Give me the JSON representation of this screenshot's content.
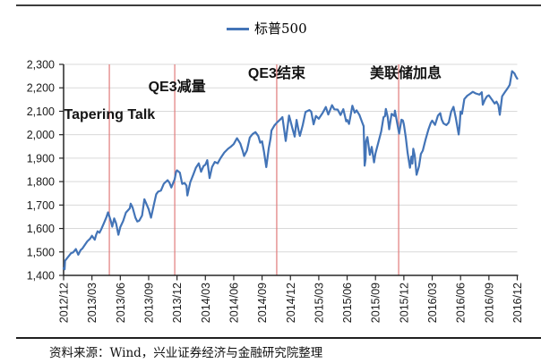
{
  "legend": {
    "label": "标普500"
  },
  "footer": {
    "source_text": "资料来源：Wind，兴业证券经济与金融研究院整理"
  },
  "colors": {
    "series_line": "#4374b7",
    "event_line": "#e07b7b",
    "gridline": "#d9d9d9",
    "axis": "#262626",
    "text": "#1a1a1a",
    "rule": "#3d3d3d"
  },
  "chart_data": {
    "type": "line",
    "title": "",
    "legend_entries": [
      "标普500"
    ],
    "legend_position": "top-center",
    "grid": "horizontal",
    "ylim": [
      1400,
      2300
    ],
    "y_tick_step": 100,
    "y_tick_labels": [
      "1,400",
      "1,500",
      "1,600",
      "1,700",
      "1,800",
      "1,900",
      "2,000",
      "2,100",
      "2,200",
      "2,300"
    ],
    "x_tick_labels": [
      "2012/12",
      "2013/03",
      "2013/06",
      "2013/09",
      "2013/12",
      "2014/03",
      "2014/06",
      "2014/09",
      "2014/12",
      "2015/03",
      "2015/06",
      "2015/09",
      "2015/12",
      "2016/03",
      "2016/06",
      "2016/09",
      "2016/12"
    ],
    "x_tick_months": [
      0,
      3,
      6,
      9,
      12,
      15,
      18,
      21,
      24,
      27,
      30,
      33,
      36,
      39,
      42,
      45,
      48
    ],
    "x_unit": "months after 2012/12",
    "xlim_months": [
      0,
      48
    ],
    "events": [
      {
        "label": "Tapering Talk",
        "line_month": 4.84,
        "label_month": 0.05,
        "label_value": 2083,
        "align": "left"
      },
      {
        "label": "QE3减量",
        "line_month": 11.76,
        "label_month": 12.0,
        "label_value": 2212,
        "align": "center"
      },
      {
        "label": "QE3结束",
        "line_month": 22.55,
        "label_month": 22.55,
        "label_value": 2268,
        "align": "center"
      },
      {
        "label": "美联储加息",
        "line_month": 35.45,
        "label_month": 36.2,
        "label_value": 2270,
        "align": "center"
      }
    ],
    "series": [
      {
        "name": "标普500",
        "points": [
          [
            0,
            1430
          ],
          [
            0.1,
            1426
          ],
          [
            0.15,
            1462
          ],
          [
            0.5,
            1480
          ],
          [
            0.8,
            1495
          ],
          [
            1,
            1498
          ],
          [
            1.3,
            1512
          ],
          [
            1.55,
            1488
          ],
          [
            1.8,
            1508
          ],
          [
            2,
            1515
          ],
          [
            2.5,
            1545
          ],
          [
            2.8,
            1556
          ],
          [
            3,
            1569
          ],
          [
            3.3,
            1552
          ],
          [
            3.45,
            1574
          ],
          [
            3.6,
            1588
          ],
          [
            3.8,
            1582
          ],
          [
            4,
            1598
          ],
          [
            4.3,
            1626
          ],
          [
            4.55,
            1650
          ],
          [
            4.7,
            1669
          ],
          [
            4.85,
            1650
          ],
          [
            5,
            1631
          ],
          [
            5.15,
            1608
          ],
          [
            5.35,
            1643
          ],
          [
            5.55,
            1622
          ],
          [
            5.8,
            1573
          ],
          [
            6,
            1606
          ],
          [
            6.3,
            1632
          ],
          [
            6.6,
            1668
          ],
          [
            7,
            1686
          ],
          [
            7.1,
            1706
          ],
          [
            7.3,
            1690
          ],
          [
            7.6,
            1646
          ],
          [
            7.8,
            1630
          ],
          [
            8,
            1633
          ],
          [
            8.3,
            1655
          ],
          [
            8.55,
            1725
          ],
          [
            8.8,
            1701
          ],
          [
            9,
            1682
          ],
          [
            9.25,
            1646
          ],
          [
            9.6,
            1710
          ],
          [
            9.8,
            1746
          ],
          [
            10,
            1757
          ],
          [
            10.3,
            1762
          ],
          [
            10.6,
            1791
          ],
          [
            11,
            1806
          ],
          [
            11.2,
            1795
          ],
          [
            11.4,
            1775
          ],
          [
            11.75,
            1810
          ],
          [
            11.9,
            1842
          ],
          [
            12,
            1848
          ],
          [
            12.3,
            1838
          ],
          [
            12.55,
            1790
          ],
          [
            12.8,
            1794
          ],
          [
            13,
            1783
          ],
          [
            13.1,
            1741
          ],
          [
            13.4,
            1797
          ],
          [
            13.7,
            1828
          ],
          [
            14,
            1859
          ],
          [
            14.3,
            1878
          ],
          [
            14.55,
            1842
          ],
          [
            14.8,
            1866
          ],
          [
            15,
            1872
          ],
          [
            15.2,
            1891
          ],
          [
            15.45,
            1815
          ],
          [
            15.7,
            1862
          ],
          [
            16,
            1884
          ],
          [
            16.3,
            1878
          ],
          [
            16.6,
            1900
          ],
          [
            17,
            1924
          ],
          [
            17.4,
            1940
          ],
          [
            17.7,
            1949
          ],
          [
            18,
            1960
          ],
          [
            18.35,
            1985
          ],
          [
            18.7,
            1962
          ],
          [
            18.95,
            1931
          ],
          [
            19.1,
            1909
          ],
          [
            19.4,
            1933
          ],
          [
            19.7,
            1988
          ],
          [
            20,
            2003
          ],
          [
            20.3,
            2011
          ],
          [
            20.6,
            1994
          ],
          [
            20.8,
            1966
          ],
          [
            21,
            1972
          ],
          [
            21.2,
            1928
          ],
          [
            21.45,
            1862
          ],
          [
            21.7,
            1941
          ],
          [
            21.9,
            1985
          ],
          [
            22,
            2018
          ],
          [
            22.3,
            2039
          ],
          [
            22.6,
            2053
          ],
          [
            23,
            2068
          ],
          [
            23.15,
            2075
          ],
          [
            23.5,
            1973
          ],
          [
            23.85,
            2082
          ],
          [
            24,
            2059
          ],
          [
            24.2,
            2028
          ],
          [
            24.45,
            1992
          ],
          [
            24.65,
            2063
          ],
          [
            24.85,
            2021
          ],
          [
            25,
            1995
          ],
          [
            25.3,
            2041
          ],
          [
            25.6,
            2097
          ],
          [
            26,
            2105
          ],
          [
            26.2,
            2098
          ],
          [
            26.45,
            2044
          ],
          [
            26.7,
            2080
          ],
          [
            27,
            2068
          ],
          [
            27.4,
            2092
          ],
          [
            27.75,
            2118
          ],
          [
            28,
            2086
          ],
          [
            28.4,
            2126
          ],
          [
            28.65,
            2108
          ],
          [
            29,
            2107
          ],
          [
            29.3,
            2084
          ],
          [
            29.6,
            2109
          ],
          [
            29.9,
            2057
          ],
          [
            30,
            2063
          ],
          [
            30.2,
            2046
          ],
          [
            30.55,
            2124
          ],
          [
            30.8,
            2094
          ],
          [
            31,
            2104
          ],
          [
            31.3,
            2084
          ],
          [
            31.6,
            2052
          ],
          [
            31.75,
            2036
          ],
          [
            31.85,
            1868
          ],
          [
            31.95,
            1894
          ],
          [
            32,
            1972
          ],
          [
            32.15,
            1990
          ],
          [
            32.4,
            1914
          ],
          [
            32.6,
            1948
          ],
          [
            32.85,
            1882
          ],
          [
            33,
            1920
          ],
          [
            33.3,
            1967
          ],
          [
            33.6,
            2014
          ],
          [
            33.85,
            2075
          ],
          [
            34,
            2079
          ],
          [
            34.1,
            2110
          ],
          [
            34.3,
            2075
          ],
          [
            34.45,
            2023
          ],
          [
            34.7,
            2089
          ],
          [
            35,
            2080
          ],
          [
            35.05,
            2103
          ],
          [
            35.3,
            2048
          ],
          [
            35.5,
            2005
          ],
          [
            35.75,
            2064
          ],
          [
            35.9,
            2061
          ],
          [
            36,
            2044
          ],
          [
            36.2,
            1990
          ],
          [
            36.4,
            1922
          ],
          [
            36.65,
            1859
          ],
          [
            36.8,
            1907
          ],
          [
            36.9,
            1877
          ],
          [
            37,
            1940
          ],
          [
            37.15,
            1912
          ],
          [
            37.35,
            1829
          ],
          [
            37.6,
            1865
          ],
          [
            37.8,
            1918
          ],
          [
            38,
            1932
          ],
          [
            38.3,
            1979
          ],
          [
            38.6,
            2022
          ],
          [
            38.85,
            2050
          ],
          [
            39,
            2060
          ],
          [
            39.3,
            2042
          ],
          [
            39.6,
            2081
          ],
          [
            39.85,
            2092
          ],
          [
            40,
            2065
          ],
          [
            40.2,
            2048
          ],
          [
            40.5,
            2041
          ],
          [
            40.75,
            2052
          ],
          [
            41,
            2097
          ],
          [
            41.25,
            2119
          ],
          [
            41.5,
            2071
          ],
          [
            41.8,
            2001
          ],
          [
            41.9,
            2036
          ],
          [
            42,
            2099
          ],
          [
            42.15,
            2089
          ],
          [
            42.4,
            2152
          ],
          [
            42.7,
            2166
          ],
          [
            43,
            2174
          ],
          [
            43.3,
            2183
          ],
          [
            43.6,
            2176
          ],
          [
            44,
            2171
          ],
          [
            44.25,
            2181
          ],
          [
            44.35,
            2128
          ],
          [
            44.6,
            2151
          ],
          [
            44.8,
            2164
          ],
          [
            45,
            2168
          ],
          [
            45.3,
            2151
          ],
          [
            45.6,
            2133
          ],
          [
            45.8,
            2141
          ],
          [
            46,
            2126
          ],
          [
            46.15,
            2085
          ],
          [
            46.4,
            2164
          ],
          [
            46.7,
            2182
          ],
          [
            47,
            2199
          ],
          [
            47.2,
            2213
          ],
          [
            47.45,
            2271
          ],
          [
            47.7,
            2262
          ],
          [
            47.85,
            2249
          ],
          [
            48,
            2239
          ]
        ]
      }
    ]
  }
}
